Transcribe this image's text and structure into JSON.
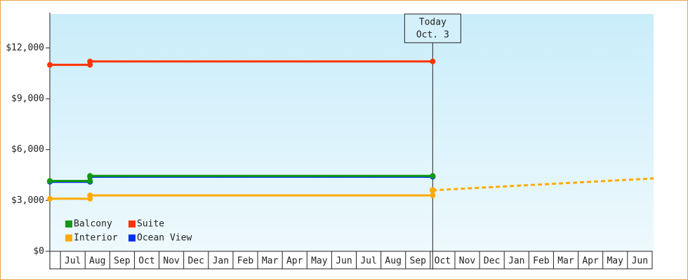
{
  "chart_data": {
    "type": "line",
    "xlim": [
      -0.43,
      24.06
    ],
    "ylim": [
      0,
      14000
    ],
    "yticks": [
      {
        "value": 0,
        "label": "$0"
      },
      {
        "value": 3000,
        "label": "$3,000"
      },
      {
        "value": 6000,
        "label": "$6,000"
      },
      {
        "value": 9000,
        "label": "$9,000"
      },
      {
        "value": 12000,
        "label": "$12,000"
      }
    ],
    "xticks": [
      {
        "value": 0,
        "label": "Jul"
      },
      {
        "value": 1,
        "label": "Aug"
      },
      {
        "value": 2,
        "label": "Sep"
      },
      {
        "value": 3,
        "label": "Oct"
      },
      {
        "value": 4,
        "label": "Nov"
      },
      {
        "value": 5,
        "label": "Dec"
      },
      {
        "value": 6,
        "label": "Jan"
      },
      {
        "value": 7,
        "label": "Feb"
      },
      {
        "value": 8,
        "label": "Mar"
      },
      {
        "value": 9,
        "label": "Apr"
      },
      {
        "value": 10,
        "label": "May"
      },
      {
        "value": 11,
        "label": "Jun"
      },
      {
        "value": 12,
        "label": "Jul"
      },
      {
        "value": 13,
        "label": "Aug"
      },
      {
        "value": 14,
        "label": "Sep"
      },
      {
        "value": 15,
        "label": "Oct"
      },
      {
        "value": 16,
        "label": "Nov"
      },
      {
        "value": 17,
        "label": "Dec"
      },
      {
        "value": 18,
        "label": "Jan"
      },
      {
        "value": 19,
        "label": "Feb"
      },
      {
        "value": 20,
        "label": "Mar"
      },
      {
        "value": 21,
        "label": "Apr"
      },
      {
        "value": 22,
        "label": "May"
      },
      {
        "value": 23,
        "label": "Jun"
      }
    ],
    "series": [
      {
        "name": "Balcony",
        "color": "#119911",
        "x": [
          -0.43,
          1.2,
          1.2,
          15.1
        ],
        "values": [
          4150,
          4150,
          4450,
          4450
        ]
      },
      {
        "name": "Suite",
        "color": "#ff3300",
        "x": [
          -0.43,
          1.2,
          1.2,
          15.1
        ],
        "values": [
          11000,
          11000,
          11200,
          11200
        ]
      },
      {
        "name": "Interior",
        "color": "#ffaa00",
        "x": [
          -0.43,
          1.2,
          1.2,
          15.1
        ],
        "values": [
          3100,
          3100,
          3300,
          3300
        ],
        "projection": {
          "x": [
            15.1,
            24.06
          ],
          "values": [
            3600,
            4300
          ]
        }
      },
      {
        "name": "Ocean View",
        "color": "#0033ee",
        "x": [
          -0.43,
          1.2,
          1.2,
          15.1
        ],
        "values": [
          4100,
          4100,
          4400,
          4400
        ]
      }
    ],
    "draw_order": [
      2,
      3,
      0,
      1
    ],
    "annotation": {
      "x": 15.1,
      "lines": [
        "Today",
        "Oct. 3"
      ]
    }
  }
}
